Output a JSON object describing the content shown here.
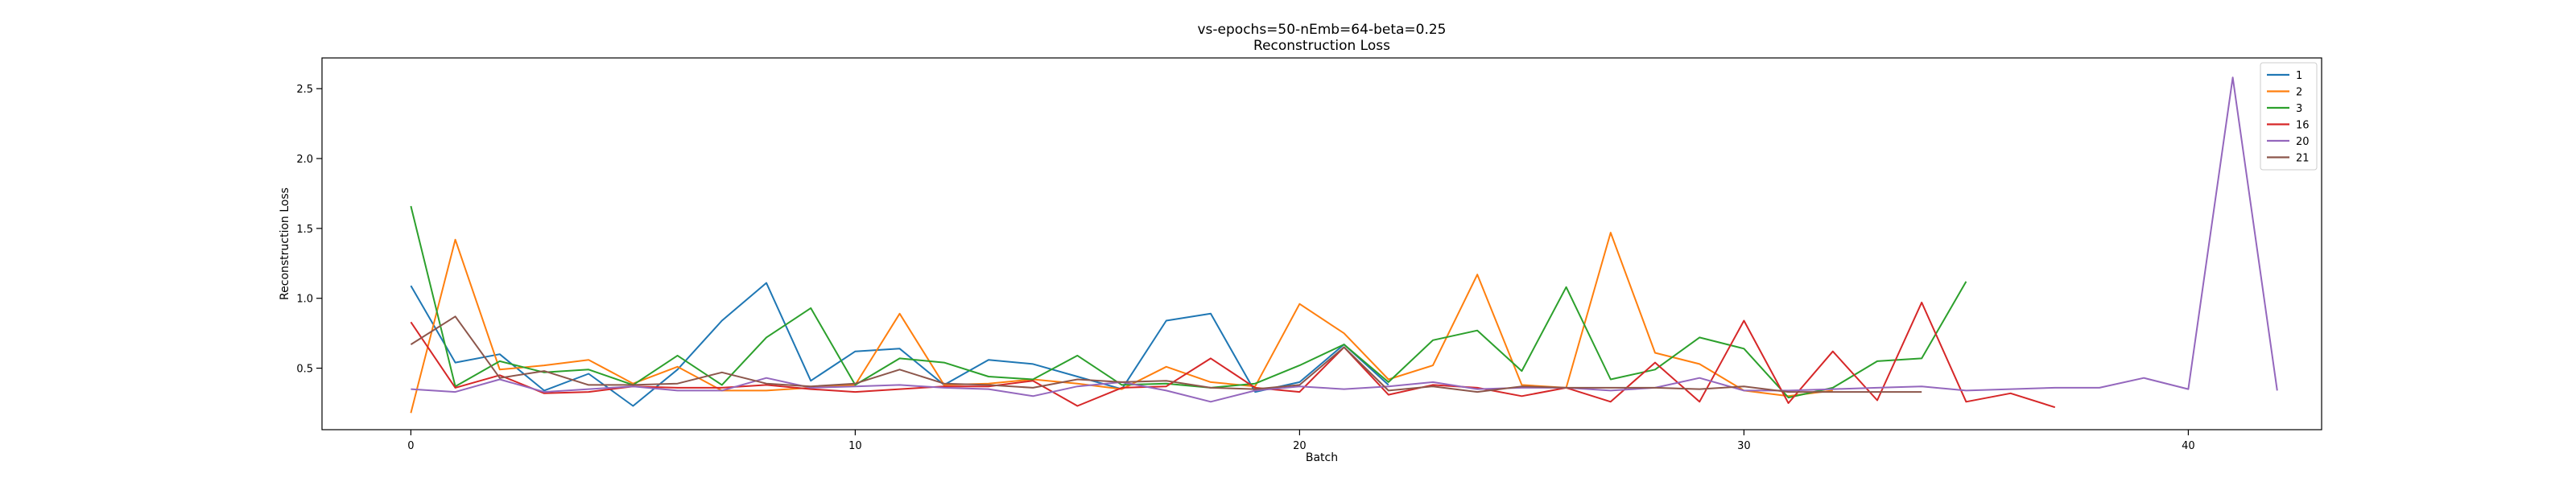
{
  "chart_data": {
    "type": "line",
    "title": "vs-epochs=50-nEmb=64-beta=0.25",
    "subtitle": "Reconstruction Loss",
    "xlabel": "Batch",
    "ylabel": "Reconstruction Loss",
    "xlim": [
      -2,
      43
    ],
    "ylim": [
      0.06,
      2.72
    ],
    "xticks": [
      0,
      10,
      20,
      30,
      40
    ],
    "yticks": [
      0.5,
      1.0,
      1.5,
      2.0,
      2.5
    ],
    "ytick_labels": [
      "0.5",
      "1.0",
      "1.5",
      "2.0",
      "2.5"
    ],
    "grid": false,
    "legend_position": "top-right",
    "series": [
      {
        "name": "1",
        "color": "#1f77b4",
        "values": [
          1.09,
          0.54,
          0.6,
          0.34,
          0.46,
          0.23,
          0.49,
          0.84,
          1.11,
          0.41,
          0.62,
          0.64,
          0.38,
          0.56,
          0.53,
          0.44,
          0.35,
          0.84,
          0.89,
          0.33,
          0.4,
          0.67,
          0.38
        ]
      },
      {
        "name": "2",
        "color": "#ff7f0e",
        "values": [
          0.18,
          1.42,
          0.49,
          0.52,
          0.56,
          0.39,
          0.51,
          0.34,
          0.34,
          0.36,
          0.38,
          0.89,
          0.38,
          0.39,
          0.42,
          0.39,
          0.35,
          0.51,
          0.4,
          0.37,
          0.96,
          0.75,
          0.42,
          0.52,
          1.17,
          0.38,
          0.36,
          1.47,
          0.61,
          0.53,
          0.34,
          0.3,
          0.34
        ]
      },
      {
        "name": "3",
        "color": "#2ca02c",
        "values": [
          1.66,
          0.37,
          0.55,
          0.47,
          0.49,
          0.38,
          0.59,
          0.38,
          0.72,
          0.93,
          0.38,
          0.57,
          0.54,
          0.44,
          0.42,
          0.59,
          0.38,
          0.39,
          0.36,
          0.39,
          0.52,
          0.67,
          0.4,
          0.7,
          0.77,
          0.48,
          1.08,
          0.42,
          0.49,
          0.72,
          0.64,
          0.29,
          0.36,
          0.55,
          0.57,
          1.12
        ]
      },
      {
        "name": "16",
        "color": "#d62728",
        "values": [
          0.83,
          0.36,
          0.45,
          0.32,
          0.33,
          0.37,
          0.36,
          0.36,
          0.38,
          0.35,
          0.33,
          0.35,
          0.37,
          0.37,
          0.41,
          0.23,
          0.36,
          0.37,
          0.57,
          0.36,
          0.33,
          0.65,
          0.31,
          0.38,
          0.36,
          0.3,
          0.36,
          0.26,
          0.54,
          0.26,
          0.84,
          0.25,
          0.62,
          0.27,
          0.97,
          0.26,
          0.32,
          0.22
        ]
      },
      {
        "name": "20",
        "color": "#9467bd",
        "values": [
          0.35,
          0.33,
          0.42,
          0.33,
          0.35,
          0.37,
          0.34,
          0.34,
          0.43,
          0.36,
          0.37,
          0.38,
          0.36,
          0.35,
          0.3,
          0.37,
          0.4,
          0.34,
          0.26,
          0.34,
          0.37,
          0.35,
          0.37,
          0.4,
          0.35,
          0.36,
          0.36,
          0.34,
          0.36,
          0.43,
          0.34,
          0.34,
          0.35,
          0.36,
          0.37,
          0.34,
          0.35,
          0.36,
          0.36,
          0.43,
          0.35,
          2.58,
          0.34
        ]
      },
      {
        "name": "21",
        "color": "#8c564b",
        "values": [
          0.67,
          0.87,
          0.43,
          0.48,
          0.38,
          0.38,
          0.39,
          0.47,
          0.39,
          0.37,
          0.39,
          0.49,
          0.39,
          0.38,
          0.36,
          0.42,
          0.4,
          0.41,
          0.36,
          0.35,
          0.38,
          0.65,
          0.34,
          0.37,
          0.33,
          0.37,
          0.36,
          0.36,
          0.36,
          0.35,
          0.37,
          0.33,
          0.33,
          0.33,
          0.33
        ]
      }
    ]
  }
}
